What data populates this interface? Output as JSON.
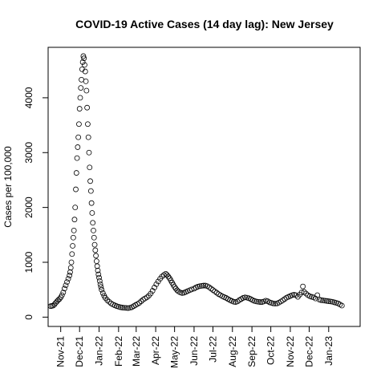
{
  "chart_data": {
    "type": "scatter",
    "title": "COVID-19 Active Cases (14 day lag): New Jersey",
    "xlabel": "",
    "ylabel": "Cases per 100,000",
    "x_ticks": [
      "Nov-21",
      "Dec-21",
      "Jan-22",
      "Feb-22",
      "Mar-22",
      "Apr-22",
      "May-22",
      "Jun-22",
      "Jul-22",
      "Aug-22",
      "Sep-22",
      "Oct-22",
      "Nov-22",
      "Dec-22",
      "Jan-23"
    ],
    "y_ticks": [
      0,
      1000,
      2000,
      3000,
      4000
    ],
    "xlim": [
      "2021-10-12",
      "2023-02-20"
    ],
    "ylim": [
      -170,
      4920
    ],
    "grid": false,
    "legend": "none",
    "marker": "open-circle",
    "series": [
      {
        "points": [
          [
            "2021-10-16",
            200
          ],
          [
            "2021-10-18",
            205
          ],
          [
            "2021-10-20",
            210
          ],
          [
            "2021-10-22",
            230
          ],
          [
            "2021-10-24",
            260
          ],
          [
            "2021-10-26",
            285
          ],
          [
            "2021-10-28",
            310
          ],
          [
            "2021-10-30",
            330
          ],
          [
            "2021-11-01",
            360
          ],
          [
            "2021-11-03",
            400
          ],
          [
            "2021-11-05",
            450
          ],
          [
            "2021-11-07",
            520
          ],
          [
            "2021-11-09",
            580
          ],
          [
            "2021-11-11",
            640
          ],
          [
            "2021-11-13",
            700
          ],
          [
            "2021-11-15",
            760
          ],
          [
            "2021-11-16",
            820
          ],
          [
            "2021-11-17",
            900
          ],
          [
            "2021-11-18",
            1000
          ],
          [
            "2021-11-19",
            1150
          ],
          [
            "2021-11-20",
            1300
          ],
          [
            "2021-11-21",
            1450
          ],
          [
            "2021-11-22",
            1580
          ],
          [
            "2021-11-23",
            1780
          ],
          [
            "2021-11-24",
            2000
          ],
          [
            "2021-11-25",
            2330
          ],
          [
            "2021-11-26",
            2630
          ],
          [
            "2021-11-27",
            2900
          ],
          [
            "2021-11-28",
            3100
          ],
          [
            "2021-11-29",
            3280
          ],
          [
            "2021-11-30",
            3520
          ],
          [
            "2021-12-01",
            3800
          ],
          [
            "2021-12-02",
            4000
          ],
          [
            "2021-12-03",
            4180
          ],
          [
            "2021-12-04",
            4330
          ],
          [
            "2021-12-05",
            4520
          ],
          [
            "2021-12-06",
            4650
          ],
          [
            "2021-12-07",
            4760
          ],
          [
            "2021-12-08",
            4720
          ],
          [
            "2021-12-09",
            4600
          ],
          [
            "2021-12-10",
            4480
          ],
          [
            "2021-12-11",
            4300
          ],
          [
            "2021-12-12",
            4130
          ],
          [
            "2021-12-13",
            3820
          ],
          [
            "2021-12-14",
            3520
          ],
          [
            "2021-12-15",
            3280
          ],
          [
            "2021-12-16",
            3000
          ],
          [
            "2021-12-17",
            2730
          ],
          [
            "2021-12-18",
            2480
          ],
          [
            "2021-12-19",
            2300
          ],
          [
            "2021-12-20",
            2080
          ],
          [
            "2021-12-21",
            1900
          ],
          [
            "2021-12-22",
            1720
          ],
          [
            "2021-12-23",
            1580
          ],
          [
            "2021-12-24",
            1450
          ],
          [
            "2021-12-25",
            1320
          ],
          [
            "2021-12-26",
            1220
          ],
          [
            "2021-12-27",
            1120
          ],
          [
            "2021-12-28",
            1020
          ],
          [
            "2021-12-29",
            930
          ],
          [
            "2021-12-30",
            850
          ],
          [
            "2021-12-31",
            780
          ],
          [
            "2022-01-01",
            720
          ],
          [
            "2022-01-02",
            660
          ],
          [
            "2022-01-03",
            600
          ],
          [
            "2022-01-04",
            550
          ],
          [
            "2022-01-05",
            500
          ],
          [
            "2022-01-07",
            440
          ],
          [
            "2022-01-09",
            390
          ],
          [
            "2022-01-11",
            350
          ],
          [
            "2022-01-14",
            310
          ],
          [
            "2022-01-17",
            280
          ],
          [
            "2022-01-20",
            250
          ],
          [
            "2022-01-23",
            230
          ],
          [
            "2022-01-26",
            215
          ],
          [
            "2022-01-29",
            200
          ],
          [
            "2022-02-01",
            190
          ],
          [
            "2022-02-04",
            180
          ],
          [
            "2022-02-07",
            175
          ],
          [
            "2022-02-10",
            170
          ],
          [
            "2022-02-13",
            168
          ],
          [
            "2022-02-16",
            165
          ],
          [
            "2022-02-19",
            170
          ],
          [
            "2022-02-22",
            180
          ],
          [
            "2022-02-25",
            200
          ],
          [
            "2022-02-28",
            220
          ],
          [
            "2022-03-03",
            240
          ],
          [
            "2022-03-06",
            260
          ],
          [
            "2022-03-09",
            290
          ],
          [
            "2022-03-12",
            320
          ],
          [
            "2022-03-15",
            340
          ],
          [
            "2022-03-18",
            360
          ],
          [
            "2022-03-21",
            390
          ],
          [
            "2022-03-24",
            430
          ],
          [
            "2022-03-27",
            480
          ],
          [
            "2022-03-30",
            540
          ],
          [
            "2022-04-02",
            600
          ],
          [
            "2022-04-05",
            650
          ],
          [
            "2022-04-08",
            700
          ],
          [
            "2022-04-11",
            740
          ],
          [
            "2022-04-14",
            770
          ],
          [
            "2022-04-17",
            790
          ],
          [
            "2022-04-19",
            770
          ],
          [
            "2022-04-21",
            740
          ],
          [
            "2022-04-23",
            710
          ],
          [
            "2022-04-25",
            670
          ],
          [
            "2022-04-27",
            630
          ],
          [
            "2022-04-29",
            590
          ],
          [
            "2022-05-01",
            550
          ],
          [
            "2022-05-03",
            520
          ],
          [
            "2022-05-05",
            490
          ],
          [
            "2022-05-07",
            470
          ],
          [
            "2022-05-10",
            450
          ],
          [
            "2022-05-13",
            440
          ],
          [
            "2022-05-16",
            445
          ],
          [
            "2022-05-19",
            460
          ],
          [
            "2022-05-22",
            475
          ],
          [
            "2022-05-25",
            490
          ],
          [
            "2022-05-28",
            505
          ],
          [
            "2022-06-01",
            520
          ],
          [
            "2022-06-04",
            540
          ],
          [
            "2022-06-07",
            555
          ],
          [
            "2022-06-10",
            565
          ],
          [
            "2022-06-13",
            570
          ],
          [
            "2022-06-16",
            575
          ],
          [
            "2022-06-19",
            575
          ],
          [
            "2022-06-22",
            565
          ],
          [
            "2022-06-25",
            545
          ],
          [
            "2022-06-28",
            520
          ],
          [
            "2022-07-01",
            495
          ],
          [
            "2022-07-04",
            470
          ],
          [
            "2022-07-07",
            445
          ],
          [
            "2022-07-10",
            420
          ],
          [
            "2022-07-13",
            400
          ],
          [
            "2022-07-16",
            380
          ],
          [
            "2022-07-19",
            365
          ],
          [
            "2022-07-22",
            350
          ],
          [
            "2022-07-25",
            330
          ],
          [
            "2022-07-28",
            310
          ],
          [
            "2022-07-31",
            295
          ],
          [
            "2022-08-03",
            280
          ],
          [
            "2022-08-06",
            275
          ],
          [
            "2022-08-09",
            285
          ],
          [
            "2022-08-12",
            310
          ],
          [
            "2022-08-15",
            330
          ],
          [
            "2022-08-18",
            350
          ],
          [
            "2022-08-21",
            360
          ],
          [
            "2022-08-24",
            355
          ],
          [
            "2022-08-27",
            345
          ],
          [
            "2022-08-30",
            330
          ],
          [
            "2022-09-02",
            310
          ],
          [
            "2022-09-05",
            295
          ],
          [
            "2022-09-08",
            285
          ],
          [
            "2022-09-11",
            280
          ],
          [
            "2022-09-14",
            275
          ],
          [
            "2022-09-17",
            275
          ],
          [
            "2022-09-20",
            285
          ],
          [
            "2022-09-23",
            300
          ],
          [
            "2022-09-26",
            290
          ],
          [
            "2022-09-29",
            270
          ],
          [
            "2022-10-02",
            260
          ],
          [
            "2022-10-05",
            250
          ],
          [
            "2022-10-08",
            245
          ],
          [
            "2022-10-11",
            250
          ],
          [
            "2022-10-14",
            265
          ],
          [
            "2022-10-17",
            285
          ],
          [
            "2022-10-20",
            305
          ],
          [
            "2022-10-23",
            330
          ],
          [
            "2022-10-26",
            355
          ],
          [
            "2022-10-29",
            370
          ],
          [
            "2022-11-01",
            385
          ],
          [
            "2022-11-04",
            400
          ],
          [
            "2022-11-07",
            410
          ],
          [
            "2022-11-10",
            400
          ],
          [
            "2022-11-13",
            370
          ],
          [
            "2022-11-16",
            410
          ],
          [
            "2022-11-19",
            450
          ],
          [
            "2022-11-21",
            560
          ],
          [
            "2022-11-23",
            460
          ],
          [
            "2022-11-26",
            430
          ],
          [
            "2022-11-29",
            400
          ],
          [
            "2022-12-02",
            380
          ],
          [
            "2022-12-05",
            370
          ],
          [
            "2022-12-08",
            360
          ],
          [
            "2022-12-11",
            340
          ],
          [
            "2022-12-14",
            400
          ],
          [
            "2022-12-17",
            320
          ],
          [
            "2022-12-20",
            310
          ],
          [
            "2022-12-23",
            305
          ],
          [
            "2022-12-26",
            300
          ],
          [
            "2022-12-29",
            295
          ],
          [
            "2023-01-01",
            290
          ],
          [
            "2023-01-04",
            285
          ],
          [
            "2023-01-07",
            280
          ],
          [
            "2023-01-10",
            270
          ],
          [
            "2023-01-13",
            260
          ],
          [
            "2023-01-16",
            250
          ],
          [
            "2023-01-19",
            230
          ],
          [
            "2023-01-22",
            210
          ]
        ]
      }
    ]
  }
}
